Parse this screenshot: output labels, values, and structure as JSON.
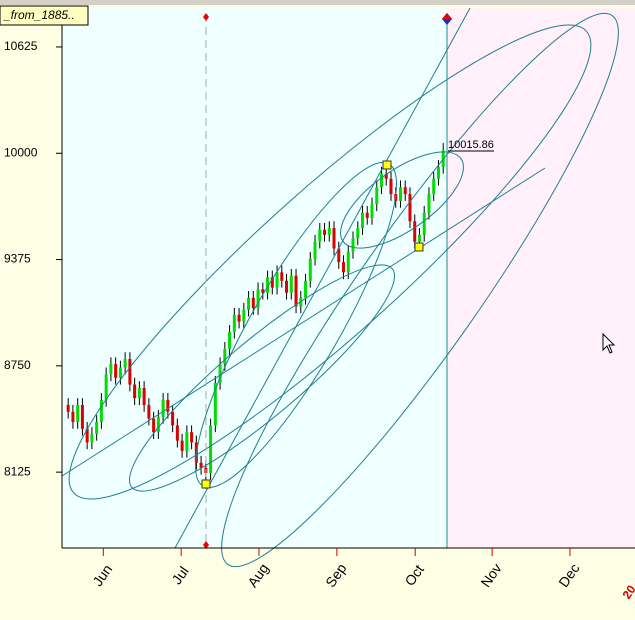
{
  "chart_data": {
    "type": "candlestick",
    "tab_label": "_from_1885..",
    "last_price": 10015.86,
    "corner_label": "20",
    "categories": [
      null,
      null,
      null,
      null,
      null,
      null,
      null,
      null,
      null,
      null,
      null,
      null,
      null,
      null,
      null,
      null,
      null,
      null,
      null,
      null,
      null,
      null,
      null,
      null,
      null,
      null,
      null,
      null,
      null,
      null,
      null,
      null,
      null,
      null,
      null,
      null,
      null,
      null,
      null,
      null,
      null,
      null,
      null,
      null,
      null,
      null,
      null,
      null,
      null,
      null,
      null,
      null,
      null,
      null,
      null,
      null,
      null,
      null,
      null,
      null,
      null,
      null,
      null,
      null,
      null,
      null,
      null,
      null,
      null,
      null,
      null,
      null,
      null,
      null,
      null,
      null,
      null,
      null,
      null,
      null
    ],
    "open": [
      8520,
      8480,
      8420,
      8520,
      8380,
      8300,
      8350,
      8420,
      8550,
      8700,
      8760,
      8680,
      8740,
      8790,
      8640,
      8560,
      8620,
      8520,
      8440,
      8360,
      8450,
      8550,
      8480,
      8400,
      8310,
      8250,
      8360,
      8300,
      8180,
      8150,
      8120,
      8400,
      8650,
      8760,
      8850,
      8950,
      9050,
      9010,
      9080,
      9150,
      9090,
      9200,
      9180,
      9270,
      9210,
      9300,
      9250,
      9180,
      9280,
      9100,
      9150,
      9250,
      9380,
      9480,
      9550,
      9520,
      9560,
      9440,
      9360,
      9300,
      9420,
      9500,
      9560,
      9650,
      9620,
      9700,
      9800,
      9880,
      9850,
      9760,
      9720,
      9800,
      9760,
      9600,
      9480,
      9520,
      9650,
      9760,
      9850,
      9920
    ],
    "high": [
      8560,
      8520,
      8560,
      8560,
      8420,
      8390,
      8460,
      8590,
      8740,
      8800,
      8800,
      8780,
      8830,
      8830,
      8680,
      8660,
      8660,
      8560,
      8480,
      8490,
      8590,
      8590,
      8520,
      8440,
      8350,
      8400,
      8400,
      8340,
      8220,
      8190,
      8440,
      8690,
      8800,
      8890,
      8990,
      9090,
      9090,
      9120,
      9190,
      9190,
      9240,
      9240,
      9310,
      9310,
      9340,
      9340,
      9290,
      9320,
      9320,
      9190,
      9290,
      9420,
      9520,
      9590,
      9590,
      9600,
      9600,
      9480,
      9400,
      9460,
      9540,
      9600,
      9690,
      9690,
      9740,
      9840,
      9920,
      9920,
      9890,
      9800,
      9840,
      9840,
      9800,
      9640,
      9560,
      9690,
      9800,
      9890,
      9960,
      10060
    ],
    "low": [
      8440,
      8380,
      8380,
      8340,
      8260,
      8260,
      8310,
      8380,
      8510,
      8660,
      8640,
      8640,
      8700,
      8600,
      8520,
      8520,
      8480,
      8400,
      8320,
      8320,
      8410,
      8440,
      8360,
      8270,
      8210,
      8210,
      8260,
      8140,
      8110,
      8080,
      8080,
      8360,
      8610,
      8720,
      8810,
      8910,
      8970,
      8970,
      9040,
      9050,
      9050,
      9140,
      9140,
      9170,
      9170,
      9210,
      9140,
      9140,
      9060,
      9060,
      9110,
      9210,
      9340,
      9440,
      9480,
      9480,
      9400,
      9320,
      9260,
      9260,
      9380,
      9460,
      9520,
      9580,
      9580,
      9660,
      9760,
      9810,
      9720,
      9680,
      9680,
      9720,
      9560,
      9440,
      9440,
      9480,
      9610,
      9720,
      9810,
      9880
    ],
    "close": [
      8480,
      8420,
      8520,
      8380,
      8300,
      8350,
      8420,
      8550,
      8700,
      8760,
      8680,
      8740,
      8790,
      8640,
      8560,
      8620,
      8520,
      8440,
      8360,
      8450,
      8550,
      8480,
      8400,
      8310,
      8250,
      8360,
      8300,
      8180,
      8150,
      8120,
      8400,
      8650,
      8760,
      8850,
      8950,
      9050,
      9010,
      9080,
      9150,
      9090,
      9200,
      9180,
      9270,
      9210,
      9300,
      9250,
      9180,
      9280,
      9100,
      9150,
      9250,
      9380,
      9480,
      9550,
      9520,
      9560,
      9440,
      9360,
      9300,
      9420,
      9500,
      9560,
      9650,
      9620,
      9700,
      9800,
      9880,
      9850,
      9760,
      9720,
      9800,
      9760,
      9600,
      9480,
      9520,
      9650,
      9760,
      9850,
      9920,
      10015.86
    ],
    "up_color": "#00dd00",
    "down_color": "#dd0000",
    "xlim": [
      -1.3,
      119.4
    ],
    "xticks": [
      {
        "value": 7.4,
        "label": "Jun"
      },
      {
        "value": 23.8,
        "label": "Jul"
      },
      {
        "value": 40.2,
        "label": "Aug"
      },
      {
        "value": 56.6,
        "label": "Sep"
      },
      {
        "value": 73.1,
        "label": "Oct"
      },
      {
        "value": 89.3,
        "label": "Nov"
      },
      {
        "value": 105.7,
        "label": "Dec"
      }
    ],
    "ylim": [
      7679,
      10854
    ],
    "yticks": [
      8125,
      8750,
      9375,
      10000,
      10625
    ]
  }
}
